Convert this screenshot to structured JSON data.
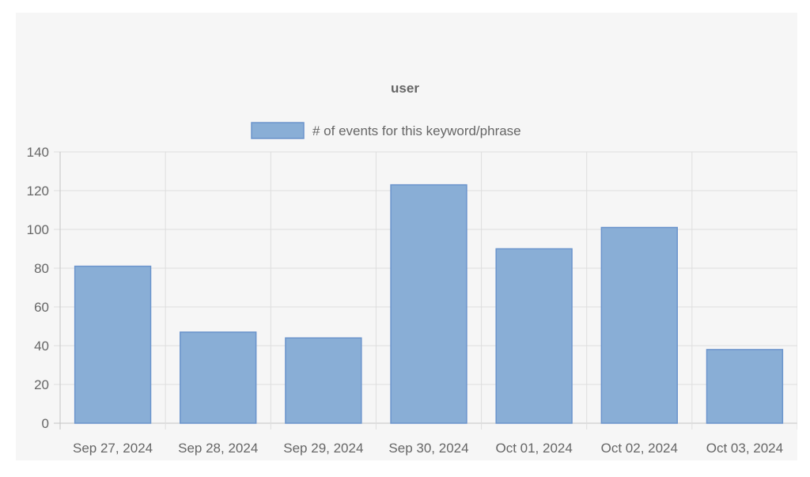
{
  "chart_data": {
    "type": "bar",
    "title": "user",
    "categories": [
      "Sep 27, 2024",
      "Sep 28, 2024",
      "Sep 29, 2024",
      "Sep 30, 2024",
      "Oct 01, 2024",
      "Oct 02, 2024",
      "Oct 03, 2024"
    ],
    "series": [
      {
        "name": "# of events for this keyword/phrase",
        "values": [
          81,
          47,
          44,
          123,
          90,
          101,
          38
        ],
        "color": "#89aed6",
        "border_color": "#6b94cc"
      }
    ],
    "ylim": [
      0,
      140
    ],
    "yticks": [
      0,
      20,
      40,
      60,
      80,
      100,
      120,
      140
    ],
    "xlabel": "",
    "ylabel": "",
    "grid": true,
    "legend_position": "top"
  }
}
